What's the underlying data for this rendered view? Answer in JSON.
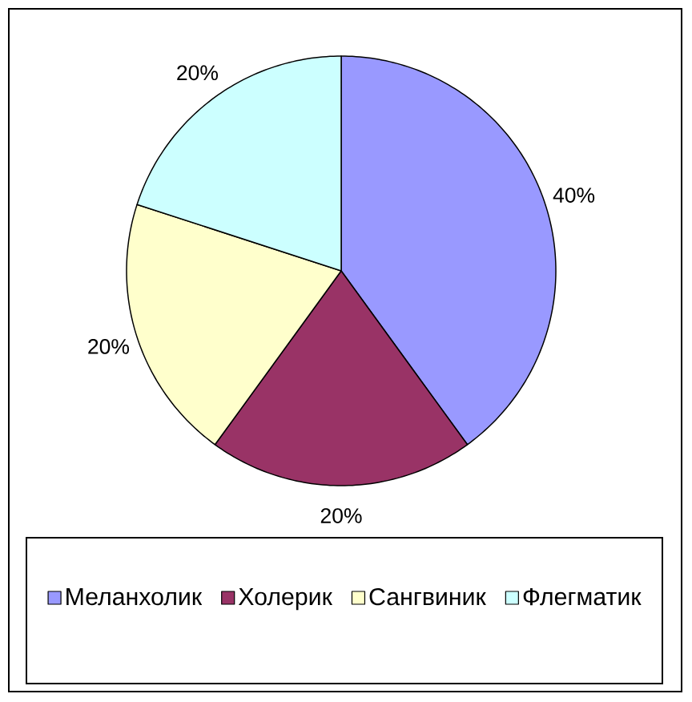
{
  "chart_data": {
    "type": "pie",
    "categories": [
      "Меланхолик",
      "Холерик",
      "Сангвиник",
      "Флегматик"
    ],
    "values": [
      40,
      20,
      20,
      20
    ],
    "colors": [
      "#9999ff",
      "#993366",
      "#ffffcc",
      "#ccffff"
    ],
    "value_labels": [
      "40%",
      "20%",
      "20%",
      "20%"
    ],
    "legend": "bottom"
  }
}
